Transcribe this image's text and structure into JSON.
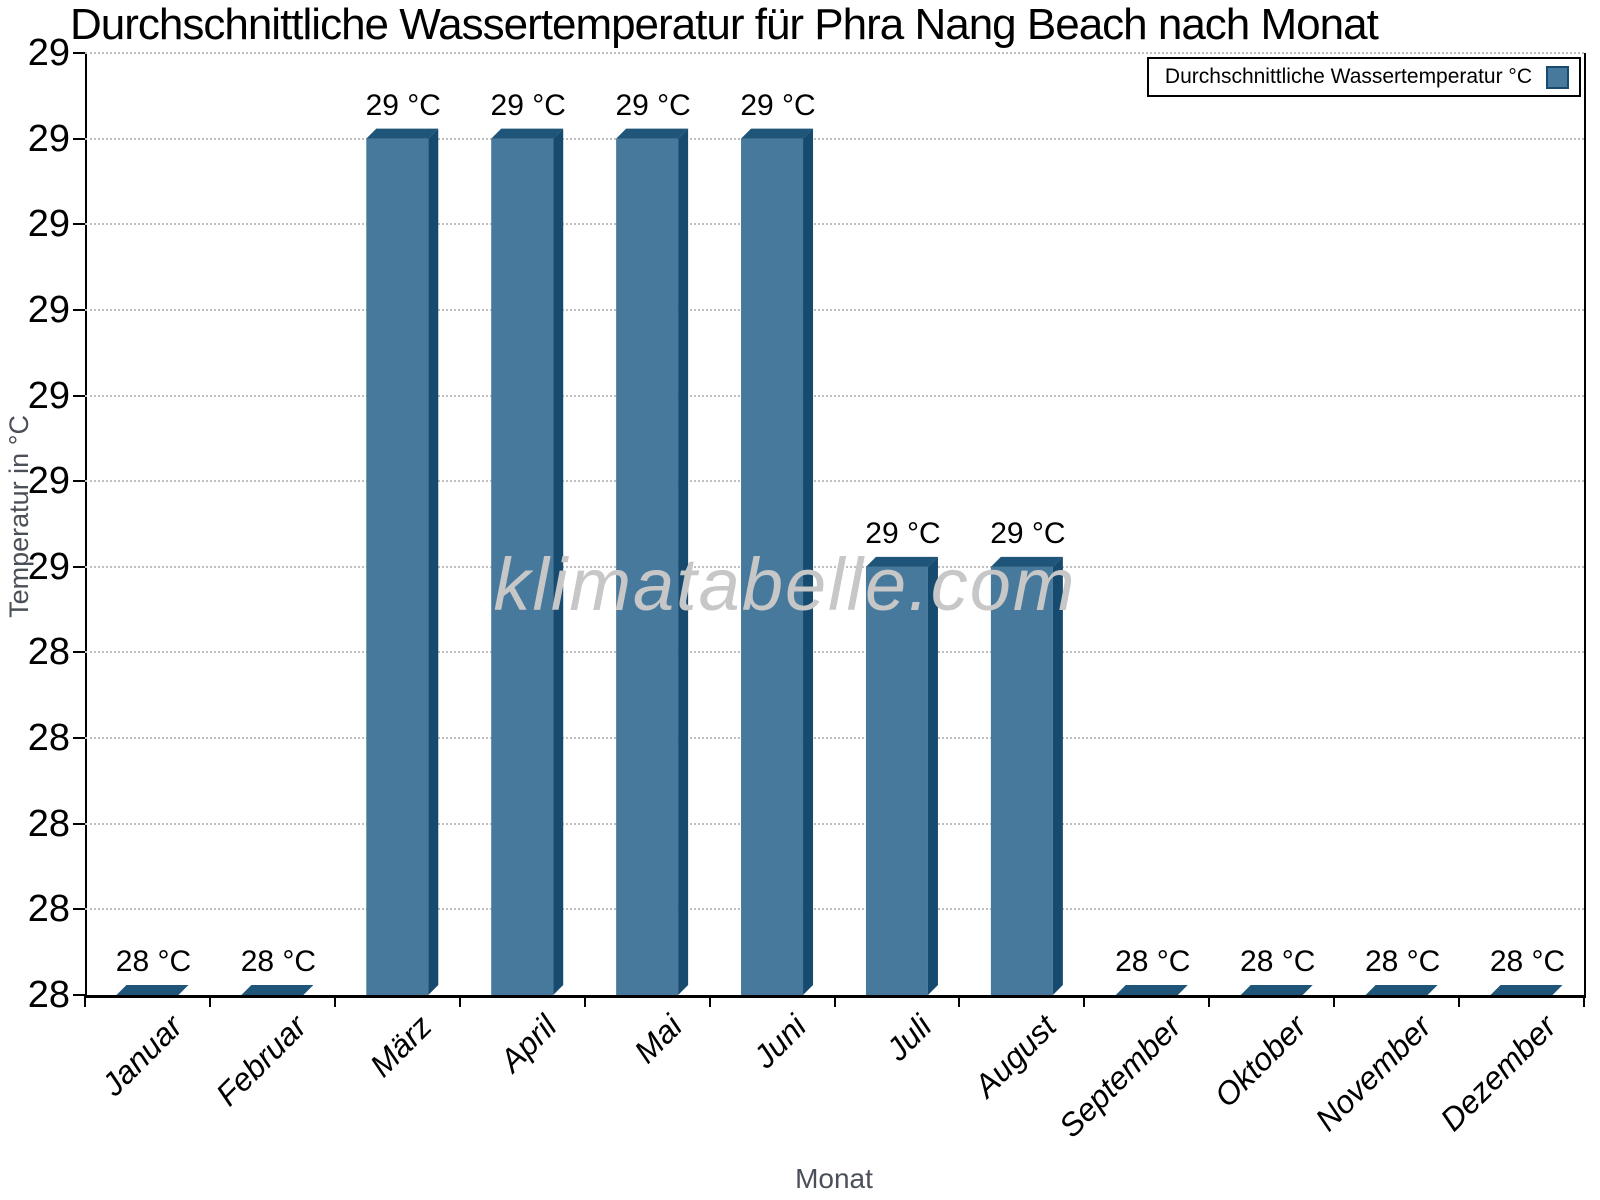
{
  "title": "Durchschnittliche Wassertemperatur für Phra Nang Beach nach Monat",
  "watermark": "klimatabelle.com",
  "legend": {
    "label": "Durchschnittliche Wassertemperatur °C"
  },
  "axis_titles": {
    "x": "Monat",
    "y": "Temperatur in °C"
  },
  "colors": {
    "bar_face": "#47799c",
    "bar_top": "#1e5578",
    "bar_side": "#164a6e",
    "grid": "#bfbfbf",
    "axis": "#000000",
    "axis_title_text": "#4a4f58",
    "watermark_text": "#c7c7c7"
  },
  "chart_data": {
    "type": "bar",
    "title": "Durchschnittliche Wassertemperatur für Phra Nang Beach nach Monat",
    "xlabel": "Monat",
    "ylabel": "Temperatur in °C",
    "legend": [
      "Durchschnittliche Wassertemperatur °C"
    ],
    "legend_position": "top-right",
    "grid": "horizontal-dotted",
    "categories": [
      "Januar",
      "Februar",
      "März",
      "April",
      "Mai",
      "Juni",
      "Juli",
      "August",
      "September",
      "Oktober",
      "November",
      "Dezember"
    ],
    "values": [
      28.0,
      28.0,
      29.0,
      29.0,
      29.0,
      29.0,
      28.5,
      28.5,
      28.0,
      28.0,
      28.0,
      28.0
    ],
    "bar_labels": [
      "28 °C",
      "28 °C",
      "29 °C",
      "29 °C",
      "29 °C",
      "29 °C",
      "29 °C",
      "29 °C",
      "28 °C",
      "28 °C",
      "28 °C",
      "28 °C"
    ],
    "ylim": [
      28.0,
      29.1
    ],
    "ytick_step": 0.1,
    "ytick_values": [
      29.1,
      29.0,
      28.9,
      28.8,
      28.7,
      28.6,
      28.5,
      28.4,
      28.3,
      28.2,
      28.1,
      28.0
    ],
    "ytick_labels": [
      "29",
      "29",
      "29",
      "29",
      "29",
      "29",
      "29",
      "28",
      "28",
      "28",
      "28",
      "28"
    ]
  }
}
